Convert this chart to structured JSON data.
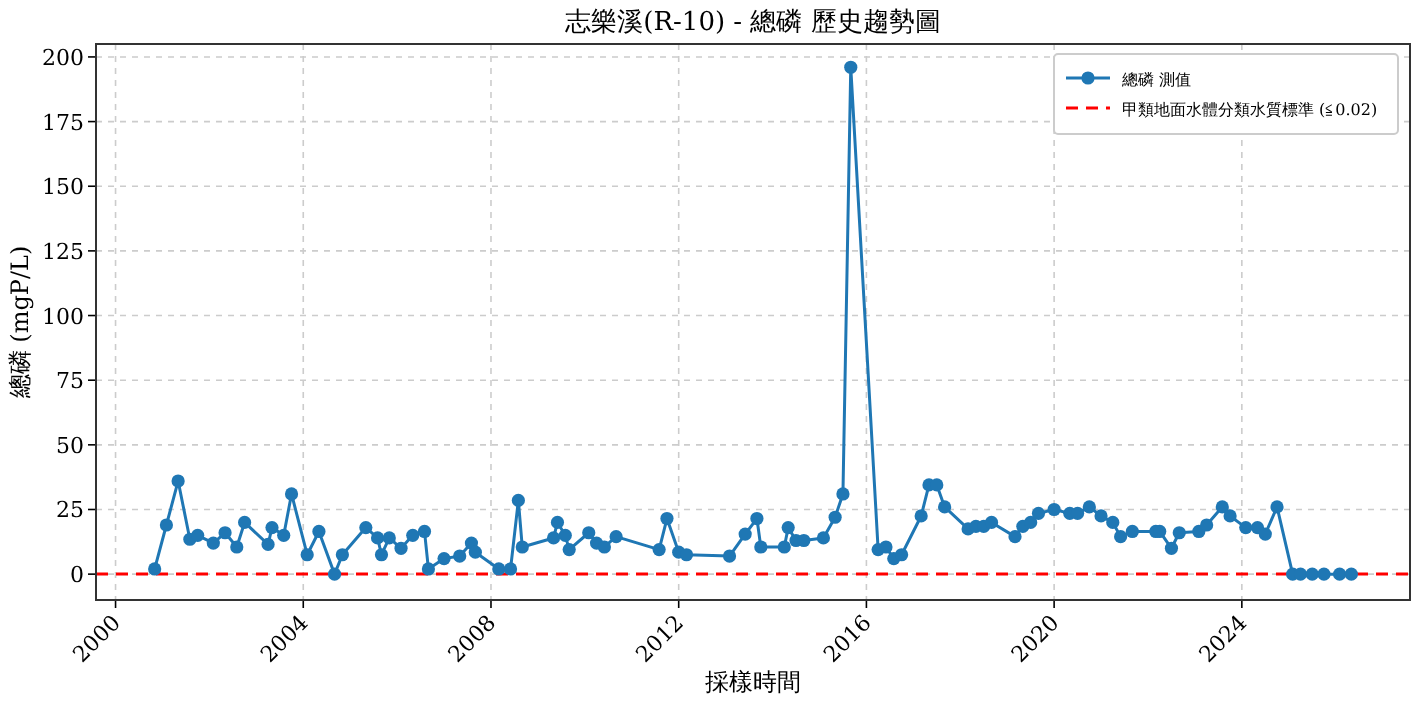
{
  "chart_data": {
    "type": "line",
    "title": "志樂溪(R-10) - 總磷 歷史趨勢圖",
    "xlabel": "採樣時間",
    "ylabel": "總磷 (mgP/L)",
    "x": [
      "2000-11",
      "2001-02",
      "2001-05",
      "2001-08",
      "2001-10",
      "2002-02",
      "2002-05",
      "2002-08",
      "2002-10",
      "2003-04",
      "2003-05",
      "2003-08",
      "2003-10",
      "2004-02",
      "2004-05",
      "2004-09",
      "2004-11",
      "2005-05",
      "2005-08",
      "2005-09",
      "2005-11",
      "2006-02",
      "2006-05",
      "2006-08",
      "2006-09",
      "2007-01",
      "2007-05",
      "2007-08",
      "2007-09",
      "2008-03",
      "2008-06",
      "2008-08",
      "2008-09",
      "2009-05",
      "2009-06",
      "2009-08",
      "2009-09",
      "2010-02",
      "2010-04",
      "2010-06",
      "2010-09",
      "2011-08",
      "2011-10",
      "2012-01",
      "2012-03",
      "2013-02",
      "2013-06",
      "2013-09",
      "2013-10",
      "2014-04",
      "2014-05",
      "2014-07",
      "2014-09",
      "2015-02",
      "2015-05",
      "2015-07",
      "2015-09",
      "2016-04",
      "2016-06",
      "2016-08",
      "2016-10",
      "2017-03",
      "2017-05",
      "2017-07",
      "2017-09",
      "2018-03",
      "2018-05",
      "2018-07",
      "2018-09",
      "2019-03",
      "2019-05",
      "2019-07",
      "2019-09",
      "2020-01",
      "2020-05",
      "2020-07",
      "2020-10",
      "2021-01",
      "2021-04",
      "2021-06",
      "2021-09",
      "2022-03",
      "2022-04",
      "2022-07",
      "2022-09",
      "2023-02",
      "2023-04",
      "2023-08",
      "2023-10",
      "2024-02",
      "2024-05",
      "2024-07",
      "2024-10",
      "2025-02",
      "2025-04",
      "2025-07",
      "2025-10",
      "2026-02",
      "2026-05"
    ],
    "series": [
      {
        "name": "總磷 測值",
        "color": "#1f77b4",
        "values": [
          2,
          19,
          36,
          13.5,
          15,
          12,
          16,
          10.5,
          20,
          11.5,
          18,
          15,
          31,
          7.5,
          16.5,
          0,
          7.5,
          18,
          14,
          7.5,
          14,
          10,
          15,
          16.5,
          2,
          6,
          7,
          12,
          8.5,
          2,
          2,
          28.5,
          10.5,
          14,
          20,
          15,
          9.5,
          16,
          12,
          10.5,
          14.5,
          9.5,
          21.5,
          8.5,
          7.5,
          7,
          15.5,
          21.5,
          10.5,
          10.5,
          18,
          13,
          13,
          14,
          22,
          31,
          196,
          9.5,
          10.5,
          6,
          7.5,
          22.5,
          34.5,
          34.5,
          26,
          17.5,
          18.5,
          18.5,
          20,
          14.5,
          18.5,
          20,
          23.5,
          25,
          23.5,
          23.5,
          26,
          22.5,
          20,
          14.5,
          16.5,
          16.5,
          16.5,
          10,
          16,
          16.5,
          19,
          26,
          22.5,
          18,
          18,
          15.5,
          26,
          0,
          0,
          0,
          0,
          0,
          0
        ]
      }
    ],
    "xlim": [
      "1999-08",
      "2027-08"
    ],
    "xticks": [
      "2000",
      "2004",
      "2008",
      "2012",
      "2016",
      "2020",
      "2024"
    ],
    "ylim": [
      -10,
      205
    ],
    "yticks": [
      0,
      25,
      50,
      75,
      100,
      125,
      150,
      175,
      200
    ],
    "ref_lines": [
      {
        "axis": "y",
        "value": 0.02,
        "label": "甲類地面水體分類水質標準 (≦0.02)",
        "color": "#ff0000",
        "line_style": "dashed"
      }
    ],
    "grid": true,
    "legend": "top right",
    "marker": "circle",
    "line_style": "solid"
  }
}
